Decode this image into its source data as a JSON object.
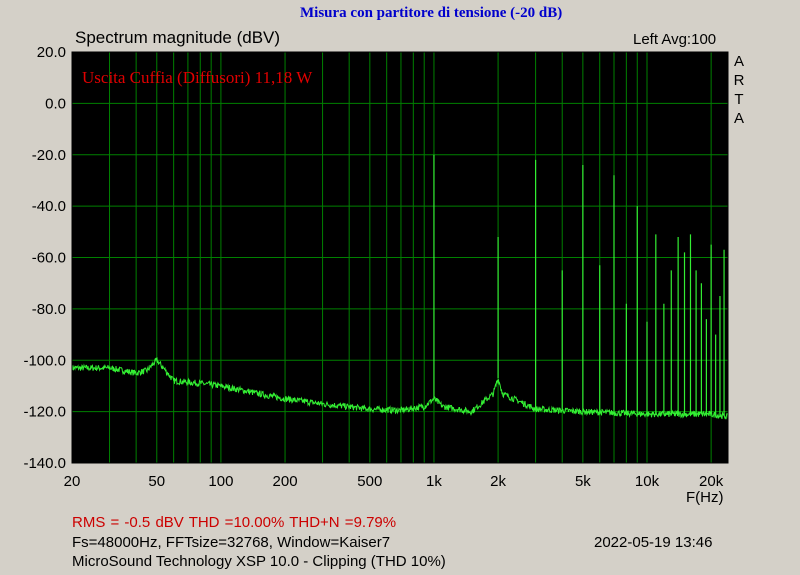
{
  "header": {
    "banner": "Misura con partitore di tensione (-20 dB)",
    "channel_avg": "Left  Avg:100",
    "brand_vertical": [
      "A",
      "R",
      "T",
      "A"
    ]
  },
  "footer": {
    "stats": "RMS =   -0.5 dBV   THD =10.00%   THD+N =9.79%",
    "params": "Fs=48000Hz, FFTsize=32768, Window=Kaiser7",
    "timestamp": "2022-05-19  13:46",
    "software": "MicroSound Technology XSP 10.0 - Clipping (THD 10%)"
  },
  "colors": {
    "plot_bg": "#000000",
    "grid": "#008000",
    "trace": "#33ee33",
    "annotation": "#e00000",
    "banner": "#0000cc",
    "frame": "#d4d0c8"
  },
  "chart_data": {
    "type": "line",
    "title": "Spectrum magnitude (dBV)",
    "xlabel": "F(Hz)",
    "ylabel": "",
    "x_scale": "log",
    "xlim": [
      20,
      24000
    ],
    "ylim": [
      -140,
      20
    ],
    "grid": true,
    "annotation": "Uscita Cuffia (Diffusori) 11,18 W",
    "y_ticks": [
      "20.0",
      "0.0",
      "-20.0",
      "-40.0",
      "-60.0",
      "-80.0",
      "-100.0",
      "-120.0",
      "-140.0"
    ],
    "y_tick_values": [
      20,
      0,
      -20,
      -40,
      -60,
      -80,
      -100,
      -120,
      -140
    ],
    "x_ticks": [
      "20",
      "50",
      "100",
      "200",
      "500",
      "1k",
      "2k",
      "5k",
      "10k",
      "20k"
    ],
    "x_tick_values": [
      20,
      50,
      100,
      200,
      500,
      1000,
      2000,
      5000,
      10000,
      20000
    ],
    "noise_floor": {
      "x": [
        20,
        30,
        40,
        45,
        50,
        55,
        60,
        80,
        100,
        150,
        200,
        300,
        500,
        700,
        900,
        1000,
        1100,
        1500,
        1900,
        2000,
        2100,
        3000,
        5000,
        10000,
        15000,
        20000,
        24000
      ],
      "y": [
        -103,
        -103,
        -105,
        -104,
        -100,
        -104,
        -108,
        -109,
        -110,
        -113,
        -115,
        -117,
        -119,
        -119.5,
        -118,
        -115,
        -118,
        -120,
        -113,
        -107,
        -113,
        -119,
        -120,
        -121,
        -121,
        -121,
        -122
      ]
    },
    "harmonics": {
      "x": [
        1000,
        2000,
        3000,
        4000,
        5000,
        6000,
        7000,
        8000,
        9000,
        10000,
        11000,
        12000,
        13000,
        14000,
        15000,
        16000,
        17000,
        18000,
        19000,
        20000,
        21000,
        22000,
        23000
      ],
      "y": [
        -20,
        -52,
        -22,
        -65,
        -24,
        -63,
        -28,
        -78,
        -40,
        -85,
        -51,
        -78,
        -65,
        -52,
        -58,
        -51,
        -65,
        -70,
        -84,
        -55,
        -90,
        -75,
        -57
      ]
    }
  }
}
